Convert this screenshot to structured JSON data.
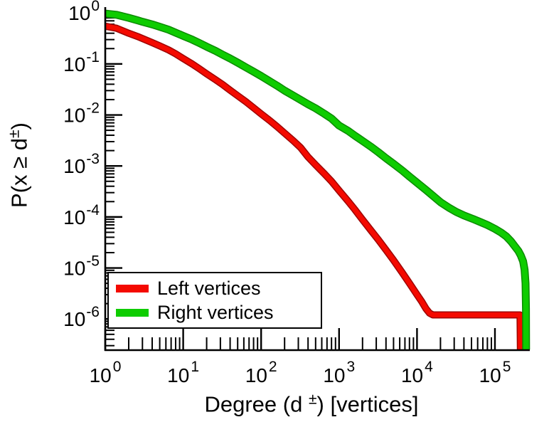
{
  "figure": {
    "background": "#ffffff",
    "axis_color": "#000000"
  },
  "chart_data": {
    "type": "line",
    "title": "",
    "x_scale": "log",
    "y_scale": "log",
    "grid": false,
    "legend_position": "southwest",
    "xlabel": {
      "pre": "Degree (d ",
      "sup": "±",
      "post": ") [vertices]"
    },
    "ylabel": {
      "pre": "P(x ≥ d",
      "sup": "±",
      "post": ")"
    },
    "xlim": [
      1,
      280000
    ],
    "ylim": [
      2.45e-07,
      1.3
    ],
    "x_tick_exponents": [
      0,
      1,
      2,
      3,
      4,
      5
    ],
    "y_tick_exponents": [
      0,
      -1,
      -2,
      -3,
      -4,
      -5,
      -6
    ],
    "tick_label_base": "10",
    "series": [
      {
        "id": "left-vertices",
        "name": "Left vertices",
        "color": "#f40a00",
        "edge_color": "#9e0500",
        "points": [
          [
            1,
            0.55
          ],
          [
            1.4,
            0.5
          ],
          [
            2,
            0.4
          ],
          [
            2.6,
            0.345
          ],
          [
            3,
            0.315
          ],
          [
            4,
            0.262
          ],
          [
            5,
            0.226
          ],
          [
            6.5,
            0.188
          ],
          [
            8,
            0.158
          ],
          [
            10,
            0.128
          ],
          [
            13,
            0.1
          ],
          [
            16,
            0.081
          ],
          [
            20,
            0.064
          ],
          [
            26,
            0.049
          ],
          [
            32,
            0.0395
          ],
          [
            40,
            0.0305
          ],
          [
            50,
            0.0238
          ],
          [
            65,
            0.0178
          ],
          [
            80,
            0.0138
          ],
          [
            100,
            0.0105
          ],
          [
            130,
            0.0077
          ],
          [
            160,
            0.0059
          ],
          [
            200,
            0.0044
          ],
          [
            260,
            0.0031
          ],
          [
            320,
            0.0023
          ],
          [
            400,
            0.0015
          ],
          [
            500,
            0.00105
          ],
          [
            650,
            0.0007
          ],
          [
            800,
            0.0005
          ],
          [
            1000,
            0.00033
          ],
          [
            1300,
            0.000205
          ],
          [
            1600,
            0.000138
          ],
          [
            2000,
            8.85e-05
          ],
          [
            2600,
            5.3e-05
          ],
          [
            3200,
            3.55e-05
          ],
          [
            4000,
            2.25e-05
          ],
          [
            5000,
            1.42e-05
          ],
          [
            6500,
            8e-06
          ],
          [
            8000,
            5e-06
          ],
          [
            10000,
            3e-06
          ],
          [
            11500,
            2.2e-06
          ],
          [
            13000,
            1.6e-06
          ],
          [
            14500,
            1.3e-06
          ],
          [
            16000,
            1.2e-06
          ],
          [
            210000,
            1.2e-06
          ],
          [
            212000,
            2.5e-07
          ]
        ]
      },
      {
        "id": "right-vertices",
        "name": "Right vertices",
        "color": "#0ecc00",
        "edge_color": "#0b8a00",
        "points": [
          [
            1,
            0.97
          ],
          [
            1.4,
            0.92
          ],
          [
            2,
            0.8
          ],
          [
            2.6,
            0.715
          ],
          [
            3,
            0.67
          ],
          [
            4,
            0.595
          ],
          [
            5,
            0.535
          ],
          [
            6.5,
            0.47
          ],
          [
            8,
            0.41
          ],
          [
            10,
            0.355
          ],
          [
            13,
            0.3
          ],
          [
            16,
            0.258
          ],
          [
            20,
            0.218
          ],
          [
            26,
            0.18
          ],
          [
            32,
            0.152
          ],
          [
            40,
            0.128
          ],
          [
            50,
            0.106
          ],
          [
            65,
            0.0845
          ],
          [
            80,
            0.0705
          ],
          [
            100,
            0.058
          ],
          [
            130,
            0.0455
          ],
          [
            160,
            0.0375
          ],
          [
            200,
            0.03
          ],
          [
            260,
            0.0238
          ],
          [
            320,
            0.0198
          ],
          [
            400,
            0.0162
          ],
          [
            500,
            0.0135
          ],
          [
            650,
            0.0105
          ],
          [
            800,
            0.0085
          ],
          [
            1000,
            0.0062
          ],
          [
            1300,
            0.0049
          ],
          [
            1600,
            0.0039
          ],
          [
            2000,
            0.0031
          ],
          [
            2600,
            0.00235
          ],
          [
            3200,
            0.00185
          ],
          [
            4000,
            0.00142
          ],
          [
            5000,
            0.0011
          ],
          [
            6500,
            0.00081
          ],
          [
            8000,
            0.00062
          ],
          [
            10000,
            0.00047
          ],
          [
            13000,
            0.00034
          ],
          [
            16000,
            0.00026
          ],
          [
            20000,
            0.000195
          ],
          [
            26000,
            0.00015
          ],
          [
            32000,
            0.000125
          ],
          [
            40000,
            0.000107
          ],
          [
            52000,
            9.15e-05
          ],
          [
            65000,
            7.95e-05
          ],
          [
            80000,
            6.95e-05
          ],
          [
            100000,
            5.85e-05
          ],
          [
            120000,
            4.95e-05
          ],
          [
            140000,
            4.15e-05
          ],
          [
            160000,
            3.35e-05
          ],
          [
            180000,
            2.65e-05
          ],
          [
            200000,
            2.15e-05
          ],
          [
            215000,
            1.75e-05
          ],
          [
            230000,
            1.35e-05
          ],
          [
            240000,
            9.2e-06
          ],
          [
            247000,
            5e-06
          ],
          [
            250000,
            1.6e-06
          ],
          [
            251000,
            2.5e-07
          ]
        ]
      }
    ],
    "legend": [
      {
        "label": "Left vertices"
      },
      {
        "label": "Right vertices"
      }
    ]
  }
}
